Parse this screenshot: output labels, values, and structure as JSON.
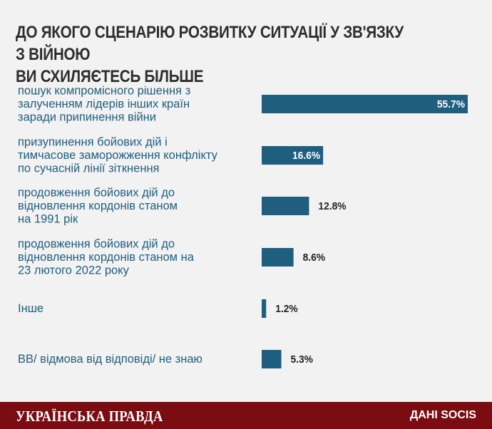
{
  "header": {
    "title_line1": "ДО ЯКОГО СЦЕНАРІЮ РОЗВИТКУ СИТУАЦІЇ У ЗВ'ЯЗКУ З ВІЙНОЮ",
    "title_line2": "ВИ СХИЛЯЄТЕСЬ БІЛЬШЕ"
  },
  "chart_data": {
    "type": "bar",
    "orientation": "horizontal",
    "categories": [
      [
        "пошук компромісного рішення з",
        "залученням лідерів інших країн",
        "заради припинення війни"
      ],
      [
        "призупинення бойових дій і",
        "тимчасове заморожження конфлікту",
        "по сучасній лінії зіткнення"
      ],
      [
        "продовження бойових дій до",
        "відновлення кордонів станом",
        "на 1991 рік"
      ],
      [
        "продовження бойових дій до",
        "відновлення кордонів станом на",
        "23 лютого 2022 року"
      ],
      [
        "Інше"
      ],
      [
        "ВВ/ відмова від відповіді/ не знаю"
      ]
    ],
    "values": [
      55.7,
      16.6,
      12.8,
      8.6,
      1.2,
      5.3
    ],
    "value_labels": [
      "55.7%",
      "16.6%",
      "12.8%",
      "8.6%",
      "1.2%",
      "5.3%"
    ],
    "unit": "%",
    "bar_color": "#1f5e7e",
    "label_color": "#1f5e7e",
    "grid": false,
    "legend": "none"
  },
  "footer": {
    "brand": "УКРАЇНСЬКА ПРАВДА",
    "source": "ДАНІ SOCIS",
    "background": "#7a0c12"
  }
}
